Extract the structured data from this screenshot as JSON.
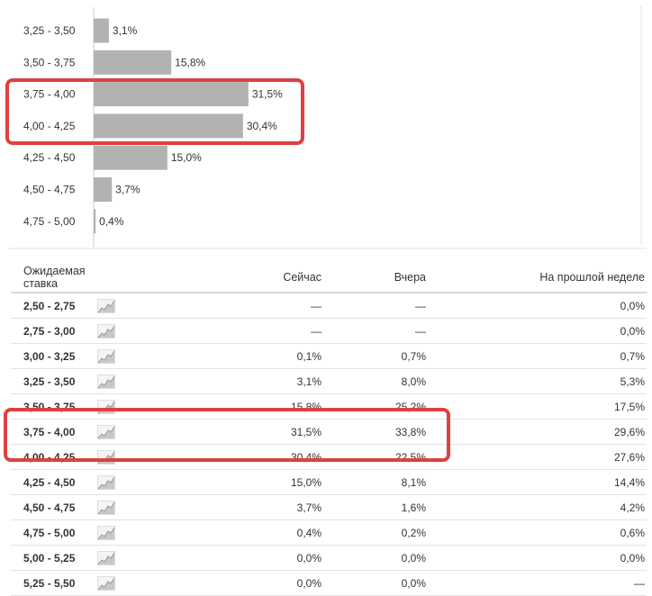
{
  "chart_data": {
    "type": "bar",
    "orientation": "horizontal",
    "categories": [
      "3,25 - 3,50",
      "3,50 - 3,75",
      "3,75 - 4,00",
      "4,00 - 4,25",
      "4,25 - 4,50",
      "4,50 - 4,75",
      "4,75 - 5,00"
    ],
    "values": [
      3.1,
      15.8,
      31.5,
      30.4,
      15.0,
      3.7,
      0.4
    ],
    "value_labels": [
      "3,1%",
      "15,8%",
      "31,5%",
      "30,4%",
      "15,0%",
      "3,7%",
      "0,4%"
    ],
    "bar_color": "#b2b2b2",
    "highlighted_categories": [
      "3,75 - 4,00",
      "4,00 - 4,25"
    ],
    "xlim": [
      0,
      33
    ],
    "grid": false
  },
  "table": {
    "headers": {
      "range": "Ожидаемая ставка",
      "now": "Сейчас",
      "yesterday": "Вчера",
      "last_week": "На прошлой неделе"
    },
    "rows": [
      {
        "range": "2,50 - 2,75",
        "now": "—",
        "yesterday": "—",
        "last_week": "0,0%"
      },
      {
        "range": "2,75 - 3,00",
        "now": "—",
        "yesterday": "—",
        "last_week": "0,0%"
      },
      {
        "range": "3,00 - 3,25",
        "now": "0,1%",
        "yesterday": "0,7%",
        "last_week": "0,7%"
      },
      {
        "range": "3,25 - 3,50",
        "now": "3,1%",
        "yesterday": "8,0%",
        "last_week": "5,3%"
      },
      {
        "range": "3,50 - 3,75",
        "now": "15,8%",
        "yesterday": "25,2%",
        "last_week": "17,5%"
      },
      {
        "range": "3,75 - 4,00",
        "now": "31,5%",
        "yesterday": "33,8%",
        "last_week": "29,6%"
      },
      {
        "range": "4,00 - 4,25",
        "now": "30,4%",
        "yesterday": "22,5%",
        "last_week": "27,6%"
      },
      {
        "range": "4,25 - 4,50",
        "now": "15,0%",
        "yesterday": "8,1%",
        "last_week": "14,4%"
      },
      {
        "range": "4,50 - 4,75",
        "now": "3,7%",
        "yesterday": "1,6%",
        "last_week": "4,2%"
      },
      {
        "range": "4,75 - 5,00",
        "now": "0,4%",
        "yesterday": "0,2%",
        "last_week": "0,6%"
      },
      {
        "range": "5,00 - 5,25",
        "now": "0,0%",
        "yesterday": "0,0%",
        "last_week": "0,0%"
      },
      {
        "range": "5,25 - 5,50",
        "now": "0,0%",
        "yesterday": "0,0%",
        "last_week": "—"
      }
    ],
    "highlighted_rows": [
      "3,75 - 4,00",
      "4,00 - 4,25"
    ],
    "row_icon": "sparkline-chart-icon"
  },
  "colors": {
    "highlight": "#e04040",
    "bar": "#b2b2b2",
    "divider": "#d9d9d9"
  }
}
